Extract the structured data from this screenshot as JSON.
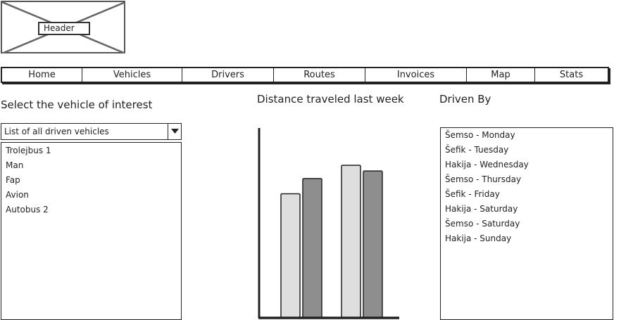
{
  "header": {
    "label": "Header"
  },
  "nav": {
    "tabs": [
      {
        "label": "Home",
        "active": true
      },
      {
        "label": "Vehicles",
        "active": false
      },
      {
        "label": "Drivers",
        "active": false
      },
      {
        "label": "Routes",
        "active": false
      },
      {
        "label": "Invoices",
        "active": false
      },
      {
        "label": "Map",
        "active": false
      },
      {
        "label": "Stats",
        "active": false
      }
    ]
  },
  "vehicle_panel": {
    "title": "Select the vehicle of interest",
    "select": {
      "value": "List of all driven vehicles"
    },
    "vehicles": [
      "Trolejbus 1",
      "Man",
      "Fap",
      "Avion",
      "Autobus 2"
    ]
  },
  "chart_panel": {
    "title": "Distance traveled last week"
  },
  "chart_data": {
    "type": "bar",
    "title": "Distance traveled last week",
    "xlabel": "",
    "ylabel": "",
    "categories": [
      "",
      ""
    ],
    "series": [
      {
        "values": [
          65,
          80
        ],
        "color": "#dedede"
      },
      {
        "values": [
          73,
          77
        ],
        "color": "#8e8e8e"
      }
    ],
    "ylim": [
      0,
      100
    ],
    "grid": false
  },
  "driver_panel": {
    "title": "Driven By",
    "entries": [
      "Šemso - Monday",
      "Šefik - Tuesday",
      "Hakija - Wednesday",
      "Šemso - Thursday",
      "Šefik - Friday",
      "Hakija - Saturday",
      "Šemso - Saturday",
      "Hakija - Sunday"
    ]
  },
  "colors": {
    "active_tab": "#8fb2e8",
    "bar_light": "#dedede",
    "bar_dark": "#8e8e8e"
  },
  "icons": {
    "select_arrow": "triangle-down-icon",
    "header_placeholder": "image-placeholder-icon"
  }
}
